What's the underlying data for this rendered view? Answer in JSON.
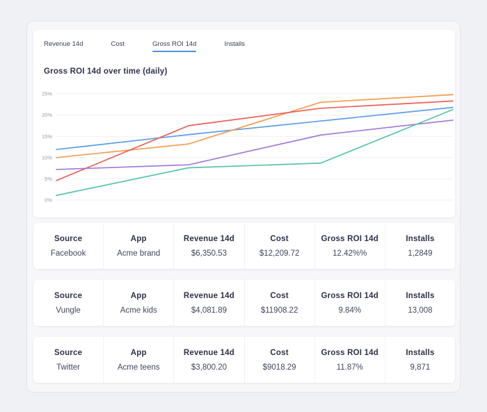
{
  "tabs": [
    {
      "label": "Revenue 14d",
      "active": false
    },
    {
      "label": "Cost",
      "active": false
    },
    {
      "label": "Gross ROI 14d",
      "active": true
    },
    {
      "label": "Installs",
      "active": false
    }
  ],
  "chart": {
    "title": "Gross ROI 14d over time (daily)"
  },
  "chart_data": {
    "type": "line",
    "title": "Gross ROI 14d over time (daily)",
    "x": [
      0,
      1,
      2,
      3
    ],
    "x_tick_labels": [],
    "series": [
      {
        "color": "#5b9be8",
        "values": [
          11.9,
          15.4,
          18.6,
          21.8
        ]
      },
      {
        "color": "#f59d4e",
        "values": [
          10.0,
          13.2,
          23.0,
          24.8
        ]
      },
      {
        "color": "#ea6058",
        "values": [
          4.6,
          17.5,
          21.6,
          23.3
        ]
      },
      {
        "color": "#a678d8",
        "values": [
          7.2,
          8.3,
          15.3,
          18.8
        ]
      },
      {
        "color": "#56c3ae",
        "values": [
          1.1,
          7.6,
          8.7,
          21.3
        ]
      }
    ],
    "yticks": [
      0,
      5,
      10,
      15,
      20,
      25
    ],
    "ytick_labels": [
      "0%",
      "5%",
      "10%",
      "15%",
      "20%",
      "25%"
    ],
    "ylim": [
      0,
      25
    ],
    "grid": "horizontal",
    "legend": "none",
    "xlabel": "",
    "ylabel": ""
  },
  "table": {
    "columns": [
      "Source",
      "App",
      "Revenue 14d",
      "Cost",
      "Gross ROI 14d",
      "Installs"
    ],
    "rows": [
      {
        "source": "Facebook",
        "app": "Acme brand",
        "revenue": "$6,350.53",
        "cost": "$12,209.72",
        "gross_roi": "12.42%%",
        "installs": "1,2849"
      },
      {
        "source": "Vungle",
        "app": "Acme kids",
        "revenue": "$4,081.89",
        "cost": "$11908.22",
        "gross_roi": "9.84%",
        "installs": "13,008"
      },
      {
        "source": "Twitter",
        "app": "Acme teens",
        "revenue": "$3,800.20",
        "cost": "$9018.29",
        "gross_roi": "11.87%",
        "installs": "9,871"
      }
    ]
  },
  "colors": {
    "accent": "#4a90e2",
    "grid_line": "#edeff3",
    "axis_text": "#979aab"
  }
}
